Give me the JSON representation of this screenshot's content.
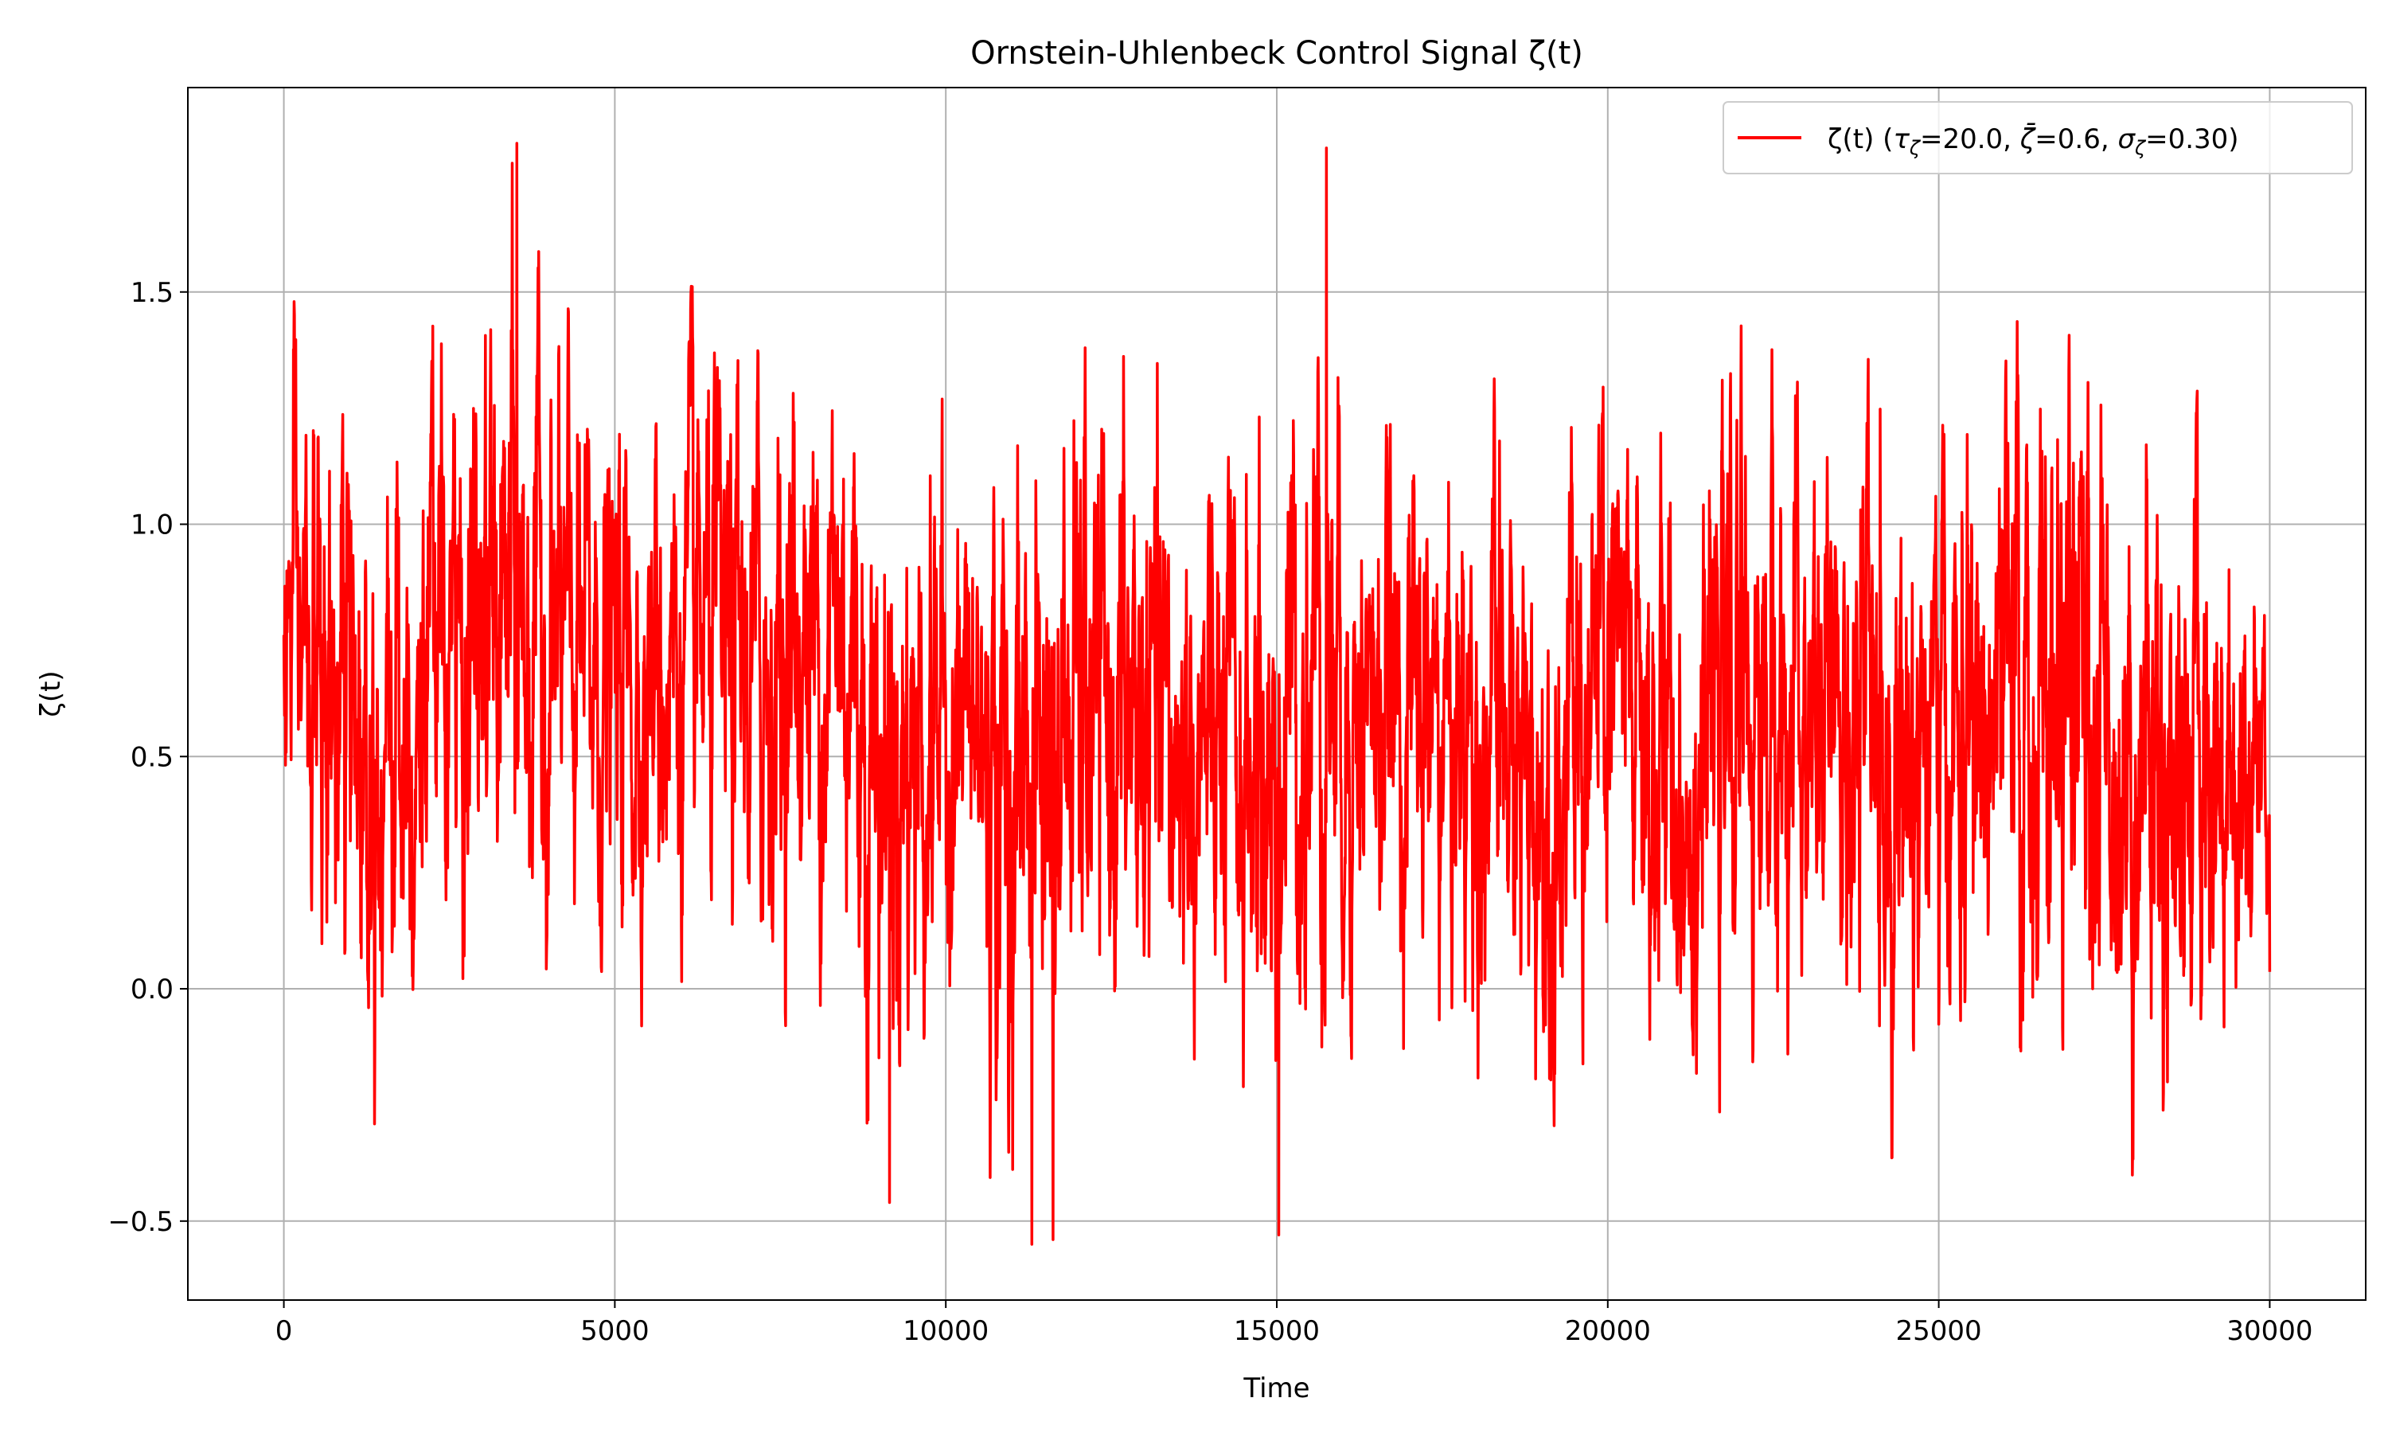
{
  "chart_data": {
    "type": "line",
    "title": "Ornstein-Uhlenbeck Control Signal ζ(t)",
    "xlabel": "Time",
    "ylabel": "ζ(t)",
    "xlim": [
      -1450,
      31450
    ],
    "ylim": [
      -0.67,
      1.94
    ],
    "xticks": [
      0,
      5000,
      10000,
      15000,
      20000,
      25000,
      30000
    ],
    "xtick_labels": [
      "0",
      "5000",
      "10000",
      "15000",
      "20000",
      "25000",
      "30000"
    ],
    "yticks": [
      -0.5,
      0.0,
      0.5,
      1.0,
      1.5
    ],
    "ytick_labels": [
      "−0.5",
      "0.0",
      "0.5",
      "1.0",
      "1.5"
    ],
    "grid": true,
    "legend_position": "top-right",
    "legend": {
      "label_plain": "ζ(t) (τζ=20.0, ζ̄=0.6, σζ=0.30)",
      "prefix": "ζ(t) (",
      "tau": "τ",
      "tau_sub": "ζ",
      "tau_val": "=20.0, ",
      "zeta_bar": "ζ̄",
      "zeta_val": "=0.6, ",
      "sigma": "σ",
      "sigma_sub": "ζ",
      "sigma_val": "=0.30)"
    },
    "series": [
      {
        "name": "ζ(t) (τζ=20.0, ζ̄=0.6, σζ=0.30)",
        "color": "#ff0000",
        "x_start": 0,
        "x_end": 30000,
        "mean": 0.6,
        "sigma": 0.3,
        "tau": 20.0,
        "observed_min": -0.55,
        "observed_max": 1.82,
        "envelope_x": [
          0,
          1000,
          2000,
          3000,
          3500,
          4000,
          5000,
          6000,
          7000,
          8000,
          8500,
          9000,
          10000,
          11000,
          11300,
          11600,
          12000,
          13000,
          14000,
          15000,
          15700,
          16000,
          17000,
          18000,
          19000,
          20000,
          21000,
          22000,
          23000,
          24000,
          25000,
          26000,
          27000,
          28000,
          29000,
          30000
        ],
        "envelope_max": [
          1.49,
          1.42,
          1.46,
          1.61,
          1.82,
          1.54,
          1.42,
          1.52,
          1.47,
          1.56,
          1.68,
          1.43,
          1.34,
          1.39,
          1.47,
          1.38,
          1.5,
          1.42,
          1.22,
          1.43,
          1.81,
          1.38,
          1.32,
          1.35,
          1.22,
          1.56,
          1.24,
          1.5,
          1.31,
          1.44,
          1.32,
          1.54,
          1.55,
          1.42,
          1.31,
          1.08
        ],
        "envelope_min": [
          0.13,
          -0.38,
          -0.15,
          -0.09,
          -0.18,
          -0.1,
          -0.1,
          -0.05,
          -0.12,
          -0.05,
          -0.12,
          -0.46,
          -0.15,
          -0.55,
          -0.35,
          -0.54,
          -0.3,
          -0.34,
          -0.3,
          -0.53,
          -0.18,
          -0.15,
          -0.15,
          -0.25,
          -0.38,
          -0.25,
          -0.41,
          -0.2,
          -0.28,
          -0.39,
          -0.3,
          -0.45,
          -0.3,
          -0.45,
          -0.31,
          -0.1
        ]
      }
    ]
  }
}
